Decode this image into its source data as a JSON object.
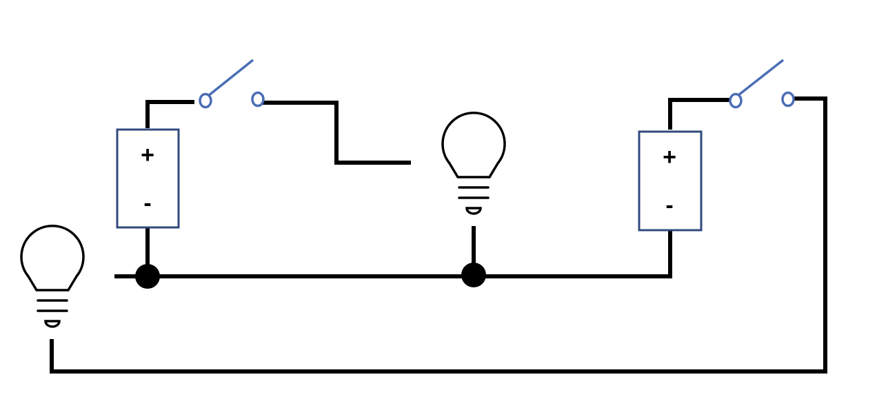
{
  "diagram": {
    "colors": {
      "wire": "#000000",
      "component_outline": "#2f4a7d",
      "switch": "#4a6db5",
      "background": "#ffffff"
    },
    "battery_left": {
      "plus_label": "+",
      "minus_label": "-"
    },
    "battery_right": {
      "plus_label": "+",
      "minus_label": "-"
    },
    "switches": [
      "open",
      "open"
    ],
    "bulbs": [
      "bulb-left",
      "bulb-center"
    ]
  }
}
